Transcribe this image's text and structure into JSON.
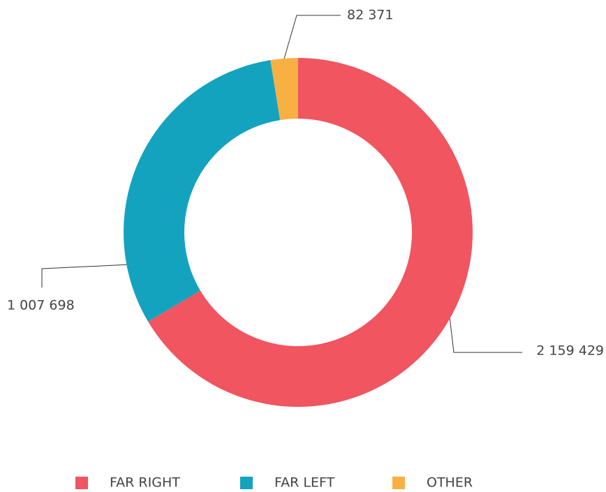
{
  "chart_data": {
    "type": "pie",
    "categories": [
      "FAR RIGHT",
      "FAR LEFT",
      "OTHER"
    ],
    "values": [
      2159429,
      1007698,
      82371
    ],
    "value_labels": [
      "2 159 429",
      "1 007 698",
      "82 371"
    ],
    "colors": [
      "#f05560",
      "#14a3bf",
      "#f9b043"
    ],
    "legend": "bottom"
  }
}
